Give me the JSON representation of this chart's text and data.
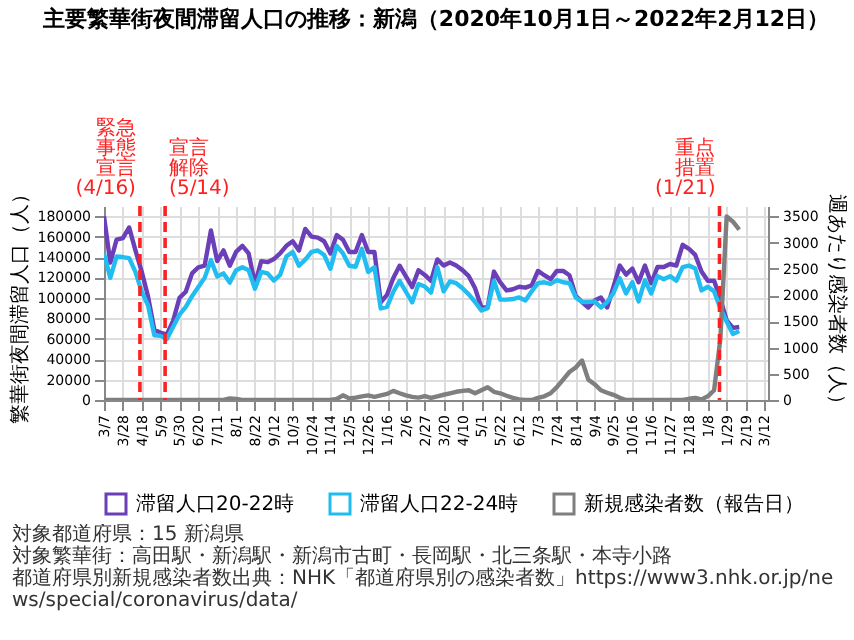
{
  "chart_data": {
    "type": "line",
    "title": "主要繁華街夜間滞留人口の推移：新潟（2020年10月1日～2022年2月12日）",
    "ylabel": "繁華街夜間滞留人口（人）",
    "y2label": "週あたり感染者数（人）",
    "x": [
      "2020-03-07",
      "2020-03-14",
      "2020-03-21",
      "2020-03-28",
      "2020-04-04",
      "2020-04-11",
      "2020-04-18",
      "2020-04-25",
      "2020-05-02",
      "2020-05-09",
      "2020-05-16",
      "2020-05-23",
      "2020-05-30",
      "2020-06-06",
      "2020-06-13",
      "2020-06-20",
      "2020-06-27",
      "2020-07-04",
      "2020-07-11",
      "2020-07-18",
      "2020-07-25",
      "2020-08-01",
      "2020-08-08",
      "2020-08-15",
      "2020-08-22",
      "2020-08-29",
      "2020-09-05",
      "2020-09-12",
      "2020-09-19",
      "2020-09-26",
      "2020-10-03",
      "2020-10-10",
      "2020-10-17",
      "2020-10-24",
      "2020-10-31",
      "2020-11-07",
      "2020-11-14",
      "2020-11-21",
      "2020-11-28",
      "2020-12-05",
      "2020-12-12",
      "2020-12-19",
      "2020-12-26",
      "2021-01-02",
      "2021-01-09",
      "2021-01-16",
      "2021-01-23",
      "2021-01-30",
      "2021-02-06",
      "2021-02-13",
      "2021-02-20",
      "2021-02-27",
      "2021-03-06",
      "2021-03-13",
      "2021-03-20",
      "2021-03-27",
      "2021-04-03",
      "2021-04-10",
      "2021-04-17",
      "2021-04-24",
      "2021-05-01",
      "2021-05-08",
      "2021-05-15",
      "2021-05-22",
      "2021-05-29",
      "2021-06-05",
      "2021-06-12",
      "2021-06-19",
      "2021-06-26",
      "2021-07-03",
      "2021-07-10",
      "2021-07-17",
      "2021-07-24",
      "2021-07-31",
      "2021-08-07",
      "2021-08-14",
      "2021-08-21",
      "2021-08-28",
      "2021-09-04",
      "2021-09-11",
      "2021-09-18",
      "2021-09-25",
      "2021-10-02",
      "2021-10-09",
      "2021-10-16",
      "2021-10-23",
      "2021-10-30",
      "2021-11-06",
      "2021-11-13",
      "2021-11-20",
      "2021-11-27",
      "2021-12-04",
      "2021-12-11",
      "2021-12-18",
      "2021-12-25",
      "2022-01-01",
      "2022-01-08",
      "2022-01-15",
      "2022-01-22",
      "2022-01-29",
      "2022-02-05",
      "2022-02-12"
    ],
    "series": [
      {
        "name": "滞留人口20-22時",
        "color": "#6b3fb8",
        "values": [
          180000,
          134500,
          157000,
          158500,
          169000,
          146500,
          125500,
          101500,
          68800,
          65800,
          64300,
          77700,
          100000,
          106000,
          124000,
          130000,
          131500,
          166000,
          136000,
          146500,
          131500,
          145000,
          151000,
          143500,
          113600,
          136000,
          135000,
          138000,
          143500,
          151000,
          155500,
          146500,
          167500,
          160000,
          159000,
          155500,
          143500,
          161500,
          157000,
          145000,
          145000,
          161500,
          145000,
          145000,
          95700,
          103000,
          119500,
          131500,
          121000,
          110600,
          127000,
          122500,
          116600,
          137700,
          131700,
          134700,
          131700,
          127200,
          121300,
          109400,
          90600,
          90600,
          125800,
          115300,
          107300,
          108500,
          110900,
          110000,
          112300,
          126400,
          122200,
          118300,
          126400,
          126400,
          122200,
          101900,
          96000,
          90600,
          97400,
          100400,
          90600,
          110900,
          131700,
          122800,
          128700,
          115300,
          131700,
          114400,
          130200,
          130200,
          133200,
          131700,
          152000,
          148100,
          142100,
          125800,
          116800,
          116800,
          98900,
          78000,
          70600,
          71500
        ]
      },
      {
        "name": "滞留人口22-24時",
        "color": "#22bdf0",
        "values": [
          143500,
          119600,
          140500,
          140000,
          139000,
          125500,
          106000,
          92700,
          63400,
          62800,
          59800,
          71800,
          83700,
          91200,
          101700,
          110600,
          119600,
          137000,
          121000,
          124000,
          115000,
          127000,
          130000,
          127000,
          109000,
          125500,
          124000,
          117000,
          122500,
          140500,
          145000,
          131500,
          137500,
          145000,
          146500,
          142000,
          128500,
          151000,
          143500,
          131500,
          130500,
          148000,
          125500,
          130000,
          89700,
          91200,
          106000,
          116600,
          106000,
          95700,
          113600,
          111200,
          105200,
          130200,
          106400,
          116200,
          114400,
          109400,
          103400,
          96000,
          87600,
          90000,
          116800,
          98300,
          98300,
          98900,
          100400,
          97400,
          106400,
          114400,
          115300,
          113800,
          117400,
          115300,
          114400,
          100400,
          96000,
          96000,
          96600,
          90600,
          96000,
          104900,
          119200,
          104300,
          115300,
          96600,
          117400,
          104300,
          121300,
          118300,
          121300,
          116800,
          130200,
          131700,
          128700,
          107300,
          110900,
          106400,
          90000,
          76600,
          64700,
          67600
        ]
      },
      {
        "name": "新規感染者数（報告日）",
        "color": "#7f7f7f",
        "axis": "y2",
        "values": [
          0,
          0,
          0,
          0,
          0,
          0,
          0,
          0,
          0,
          0,
          0,
          0,
          0,
          0,
          0,
          0,
          0,
          0,
          0,
          0,
          30,
          20,
          0,
          0,
          0,
          0,
          0,
          0,
          0,
          0,
          0,
          0,
          0,
          0,
          0,
          0,
          0,
          20,
          90,
          30,
          45,
          70,
          87,
          60,
          87,
          116,
          174,
          128,
          87,
          60,
          45,
          75,
          40,
          70,
          100,
          128,
          157,
          174,
          186,
          128,
          186,
          244,
          157,
          128,
          81,
          40,
          12,
          0,
          0,
          40,
          70,
          128,
          244,
          389,
          534,
          620,
          754,
          389,
          302,
          186,
          139,
          99,
          41,
          0,
          0,
          0,
          0,
          0,
          0,
          0,
          0,
          0,
          0,
          23,
          40,
          12,
          70,
          186,
          1170,
          3500,
          3400,
          3250
        ]
      }
    ],
    "xlim": [
      "2020-03-07",
      "2022-03-16"
    ],
    "xticks": [
      {
        "value": "2020-03-07",
        "label": "3/7"
      },
      {
        "value": "2020-03-28",
        "label": "3/28"
      },
      {
        "value": "2020-04-18",
        "label": "4/18"
      },
      {
        "value": "2020-05-09",
        "label": "5/9"
      },
      {
        "value": "2020-05-30",
        "label": "5/30"
      },
      {
        "value": "2020-06-20",
        "label": "6/20"
      },
      {
        "value": "2020-07-11",
        "label": "7/11"
      },
      {
        "value": "2020-08-01",
        "label": "8/1"
      },
      {
        "value": "2020-08-22",
        "label": "8/22"
      },
      {
        "value": "2020-09-12",
        "label": "9/12"
      },
      {
        "value": "2020-10-03",
        "label": "10/3"
      },
      {
        "value": "2020-10-24",
        "label": "10/24"
      },
      {
        "value": "2020-11-14",
        "label": "11/14"
      },
      {
        "value": "2020-12-05",
        "label": "12/5"
      },
      {
        "value": "2020-12-26",
        "label": "12/26"
      },
      {
        "value": "2021-01-16",
        "label": "1/16"
      },
      {
        "value": "2021-02-06",
        "label": "2/6"
      },
      {
        "value": "2021-02-27",
        "label": "2/27"
      },
      {
        "value": "2021-03-20",
        "label": "3/20"
      },
      {
        "value": "2021-04-10",
        "label": "4/10"
      },
      {
        "value": "2021-05-01",
        "label": "5/1"
      },
      {
        "value": "2021-05-22",
        "label": "5/22"
      },
      {
        "value": "2021-06-12",
        "label": "6/12"
      },
      {
        "value": "2021-07-03",
        "label": "7/3"
      },
      {
        "value": "2021-07-24",
        "label": "7/24"
      },
      {
        "value": "2021-08-14",
        "label": "8/14"
      },
      {
        "value": "2021-09-04",
        "label": "9/4"
      },
      {
        "value": "2021-09-25",
        "label": "9/25"
      },
      {
        "value": "2021-10-16",
        "label": "10/16"
      },
      {
        "value": "2021-11-06",
        "label": "11/6"
      },
      {
        "value": "2021-11-27",
        "label": "11/27"
      },
      {
        "value": "2021-12-18",
        "label": "12/18"
      },
      {
        "value": "2022-01-08",
        "label": "1/8"
      },
      {
        "value": "2022-01-29",
        "label": "1/29"
      },
      {
        "value": "2022-02-19",
        "label": "2/19"
      },
      {
        "value": "2022-03-12",
        "label": "3/12"
      }
    ],
    "ylim": [
      0,
      190000
    ],
    "yticks": [
      0,
      20000,
      40000,
      60000,
      80000,
      100000,
      120000,
      140000,
      160000,
      180000
    ],
    "y2lim": [
      0,
      3700
    ],
    "y2ticks": [
      0,
      500,
      1000,
      1500,
      2000,
      2500,
      3000,
      3500
    ],
    "ref_lines": [
      {
        "axis": "x",
        "value": "2020-04-16",
        "label": "緊急事態宣言(4/16)",
        "color": "#ff2020",
        "line_style": "dashed"
      },
      {
        "axis": "x",
        "value": "2020-05-14",
        "label": "宣言解除(5/14)",
        "color": "#ff2020",
        "line_style": "dashed"
      },
      {
        "axis": "x",
        "value": "2022-01-21",
        "label": "重点措置(1/21)",
        "color": "#ff2020",
        "line_style": "dashed"
      }
    ],
    "grid": true,
    "legend": "bottom",
    "annotations": [
      "対象都道府県：15 新潟県",
      "対象繁華街：高田駅・新潟駅・新潟市古町・長岡駅・北三条駅・本寺小路",
      "都道府県別新規感染者数出典：NHK「都道府県別の感染者数」https://www3.nhk.or.jp/news/special/coronavirus/data/"
    ]
  }
}
